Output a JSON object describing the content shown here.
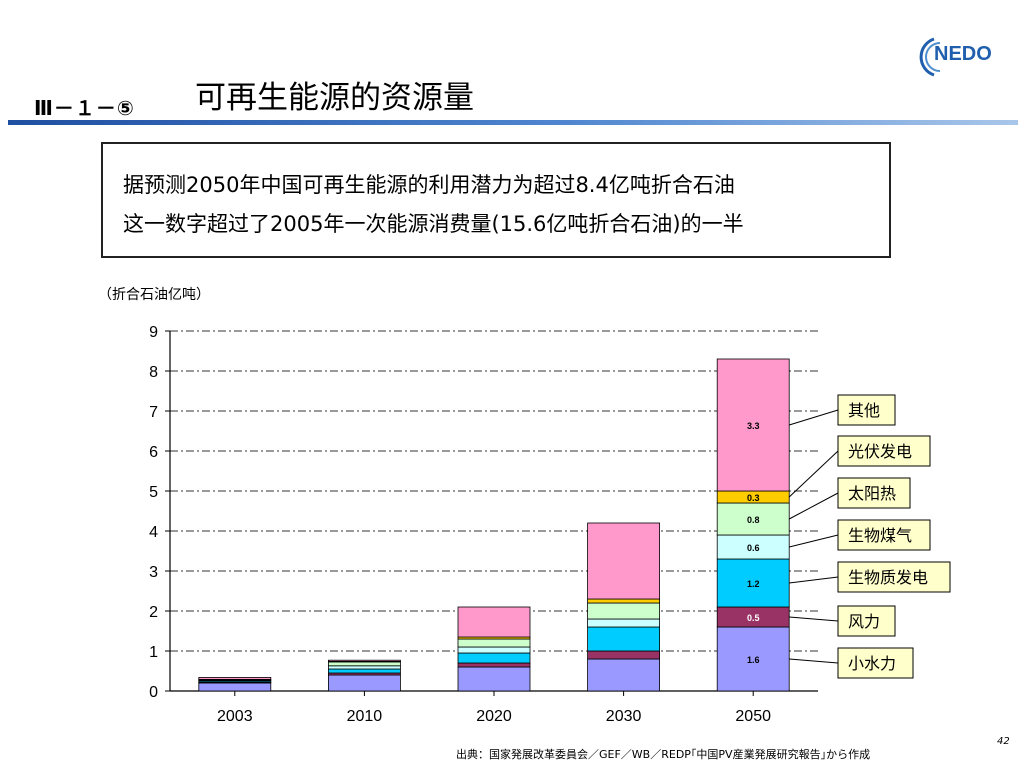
{
  "header": {
    "section_code": "Ⅲ－１－⑤",
    "title": "可再生能源的资源量",
    "logo_text": "NEDO"
  },
  "callout": {
    "line1": "据预测2050年中国可再生能源的利用潜力为超过8.4亿吨折合石油",
    "line2": "这一数字超过了2005年一次能源消费量(15.6亿吨折合石油)的一半"
  },
  "footer": {
    "source": "出典：国家発展改革委員会／GEF／WB／REDP｢中国PV産業発展研究報告｣から作成",
    "page_number": "42"
  },
  "chart_data": {
    "type": "bar",
    "stacked": true,
    "unit_label": "（折合石油亿吨）",
    "categories": [
      "2003",
      "2010",
      "2020",
      "2030",
      "2050"
    ],
    "ylim": [
      0,
      9
    ],
    "yticks": [
      0,
      1,
      2,
      3,
      4,
      5,
      6,
      7,
      8,
      9
    ],
    "grid": true,
    "legend_position": "right",
    "series": [
      {
        "name": "小水力",
        "color": "#9999ff",
        "values": [
          0.2,
          0.4,
          0.6,
          0.8,
          1.6
        ],
        "labels": [
          "",
          "",
          "",
          "",
          "1.6"
        ],
        "label_color": "#000000"
      },
      {
        "name": "风力",
        "color": "#993366",
        "values": [
          0.02,
          0.05,
          0.1,
          0.2,
          0.5
        ],
        "labels": [
          "",
          "",
          "",
          "",
          "0.5"
        ],
        "label_color": "#ffffff"
      },
      {
        "name": "生物质发电",
        "color": "#00ccff",
        "values": [
          0.03,
          0.1,
          0.25,
          0.6,
          1.2
        ],
        "labels": [
          "",
          "",
          "",
          "",
          "1.2"
        ],
        "label_color": "#000000"
      },
      {
        "name": "生物煤气",
        "color": "#ccffff",
        "values": [
          0.02,
          0.08,
          0.15,
          0.2,
          0.6
        ],
        "labels": [
          "",
          "",
          "",
          "",
          "0.6"
        ],
        "label_color": "#000000"
      },
      {
        "name": "太阳热",
        "color": "#ccffcc",
        "values": [
          0.02,
          0.1,
          0.2,
          0.4,
          0.8
        ],
        "labels": [
          "",
          "",
          "",
          "",
          "0.8"
        ],
        "label_color": "#000000"
      },
      {
        "name": "光伏发电",
        "color": "#ffcc00",
        "values": [
          0.0,
          0.01,
          0.05,
          0.1,
          0.3
        ],
        "labels": [
          "",
          "",
          "",
          "",
          "0.3"
        ],
        "label_color": "#000000"
      },
      {
        "name": "其他",
        "color": "#ff99cc",
        "values": [
          0.05,
          0.03,
          0.75,
          1.9,
          3.3
        ],
        "labels": [
          "",
          "",
          "",
          "",
          "3.3"
        ],
        "label_color": "#000000"
      }
    ]
  }
}
